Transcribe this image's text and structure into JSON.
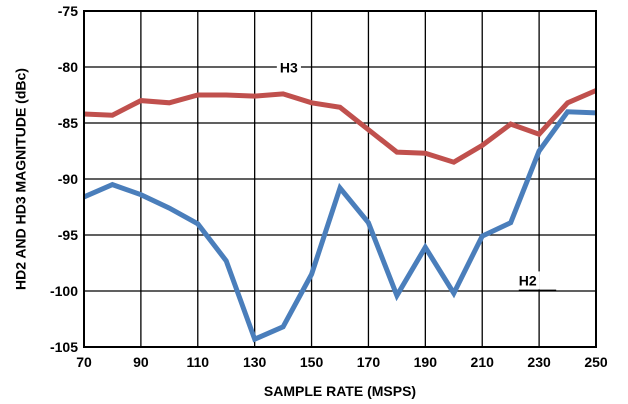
{
  "chart_data": {
    "type": "line",
    "xlabel": "SAMPLE RATE (MSPS)",
    "ylabel": "HD2 AND HD3 MAGNITUDE (dBc)",
    "xlim": [
      70,
      250
    ],
    "ylim": [
      -105,
      -75
    ],
    "xticks": [
      70,
      90,
      110,
      130,
      150,
      170,
      190,
      210,
      230,
      250
    ],
    "yticks": [
      -75,
      -80,
      -85,
      -90,
      -95,
      -100,
      -105
    ],
    "grid": true,
    "x": [
      70,
      80,
      90,
      100,
      110,
      120,
      130,
      140,
      150,
      160,
      170,
      180,
      190,
      200,
      210,
      220,
      230,
      240,
      250
    ],
    "series": [
      {
        "name": "H3",
        "color": "#c0504d",
        "values": [
          -84.2,
          -84.3,
          -83.0,
          -83.2,
          -82.5,
          -82.5,
          -82.6,
          -82.4,
          -83.2,
          -83.6,
          -85.6,
          -87.6,
          -87.7,
          -88.5,
          -87.0,
          -85.1,
          -86.0,
          -83.2,
          -82.1
        ]
      },
      {
        "name": "H2",
        "color": "#4a7ebb",
        "values": [
          -91.6,
          -90.5,
          -91.4,
          -92.6,
          -94.0,
          -97.3,
          -104.3,
          -103.2,
          -98.5,
          -90.8,
          -93.9,
          -100.4,
          -96.1,
          -100.2,
          -95.1,
          -93.9,
          -87.5,
          -84.0,
          -84.1
        ]
      }
    ],
    "annotations": [
      {
        "text": "H3",
        "x": 142,
        "y": -80.5
      },
      {
        "text": "H2",
        "x": 226,
        "y": -99.5
      }
    ]
  }
}
